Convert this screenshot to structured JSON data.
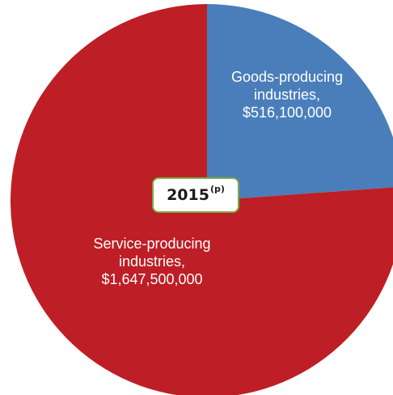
{
  "chart_data": {
    "type": "pie",
    "slices": [
      {
        "name": "Goods-producing industries",
        "value": 516100000,
        "value_label": "$516,100,000",
        "label_lines": [
          "Goods-producing",
          "industries,",
          "$516,100,000"
        ],
        "color": "#4a7ebb"
      },
      {
        "name": "Service-producing industries",
        "value": 1647500000,
        "value_label": "$1,647,500,000",
        "label_lines": [
          "Service-producing",
          "industries,",
          "$1,647,500,000"
        ],
        "color": "#be1e26"
      }
    ],
    "start_angle_deg": 0,
    "direction": "clockwise",
    "center_label": {
      "text": "2015",
      "superscript": "(p)"
    }
  }
}
